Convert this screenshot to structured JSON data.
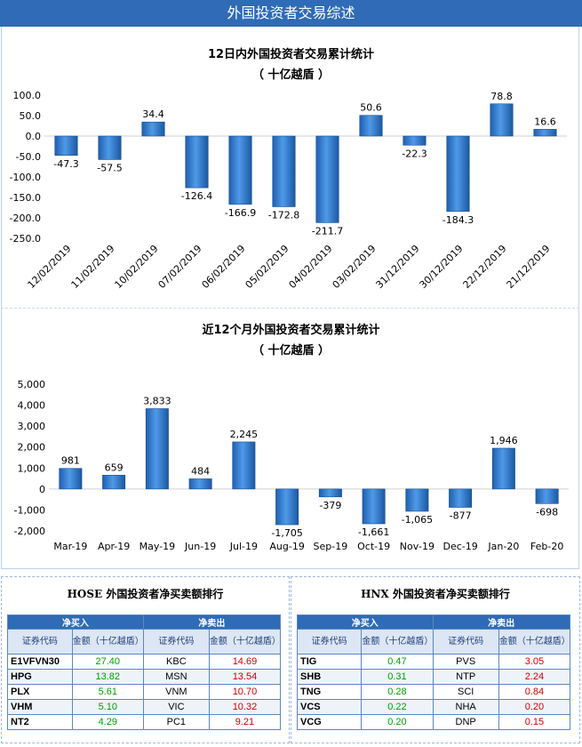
{
  "header": {
    "title": "外国投资者交易综述"
  },
  "chart_data": [
    {
      "type": "bar",
      "title": "12日内外国投资者交易累计统计",
      "subtitle": "（ 十亿越盾 ）",
      "categories": [
        "12/02/2019",
        "11/02/2019",
        "10/02/2019",
        "07/02/2019",
        "06/02/2019",
        "05/02/2019",
        "04/02/2019",
        "03/02/2019",
        "31/12/2019",
        "30/12/2019",
        "22/12/2019",
        "21/12/2019"
      ],
      "values": [
        -47.3,
        -57.5,
        34.4,
        -126.4,
        -166.9,
        -172.8,
        -211.7,
        50.6,
        -22.3,
        -184.3,
        78.8,
        16.6
      ],
      "labels": [
        "-47.3",
        "-57.5",
        "34.4",
        "-126.4",
        "-166.9",
        "-172.8",
        "-211.7",
        "50.6",
        "-22.3",
        "-184.3",
        "78.8",
        "16.6"
      ],
      "yticks": [
        "100.0",
        "50.0",
        "0.0",
        "-50.0",
        "-100.0",
        "-150.0",
        "-200.0",
        "-250.0"
      ],
      "ylim": [
        -250,
        100
      ],
      "grid": false,
      "color": "#2f86d8"
    },
    {
      "type": "bar",
      "title": "近12个月外国投资者交易累计统计",
      "subtitle": "（ 十亿越盾 ）",
      "categories": [
        "Mar-19",
        "Apr-19",
        "May-19",
        "Jun-19",
        "Jul-19",
        "Aug-19",
        "Sep-19",
        "Oct-19",
        "Nov-19",
        "Dec-19",
        "Jan-20",
        "Feb-20"
      ],
      "values": [
        981,
        659,
        3833,
        484,
        2245,
        -1705,
        -379,
        -1661,
        -1065,
        -877,
        1946,
        -698
      ],
      "labels": [
        "981",
        "659",
        "3,833",
        "484",
        "2,245",
        "-1,705",
        "-379",
        "-1,661",
        "-1,065",
        "-877",
        "1,946",
        "-698"
      ],
      "yticks": [
        "5,000",
        "4,000",
        "3,000",
        "2,000",
        "1,000",
        "0",
        "-1,000",
        "-2,000"
      ],
      "ylim": [
        -2000,
        5000
      ],
      "grid": false,
      "color": "#2f86d8"
    }
  ],
  "hose": {
    "title": "HOSE 外国投资者净买卖额排行",
    "buy_header": "净买入",
    "sell_header": "净卖出",
    "col_code": "证券代码",
    "col_amount": "金额（十亿越盾）",
    "buy": [
      {
        "code": "E1VFVN30",
        "value": "27.40"
      },
      {
        "code": "HPG",
        "value": "13.82"
      },
      {
        "code": "PLX",
        "value": "5.61"
      },
      {
        "code": "VHM",
        "value": "5.10"
      },
      {
        "code": "NT2",
        "value": "4.29"
      }
    ],
    "sell": [
      {
        "code": "KBC",
        "value": "14.69"
      },
      {
        "code": "MSN",
        "value": "13.54"
      },
      {
        "code": "VNM",
        "value": "10.70"
      },
      {
        "code": "VIC",
        "value": "10.32"
      },
      {
        "code": "PC1",
        "value": "9.21"
      }
    ]
  },
  "hnx": {
    "title": "HNX 外国投资者净买卖额排行",
    "buy_header": "净买入",
    "sell_header": "净卖出",
    "col_code": "证券代码",
    "col_amount": "金额（十亿越盾）",
    "buy": [
      {
        "code": "TIG",
        "value": "0.47"
      },
      {
        "code": "SHB",
        "value": "0.31"
      },
      {
        "code": "TNG",
        "value": "0.28"
      },
      {
        "code": "VCS",
        "value": "0.22"
      },
      {
        "code": "VCG",
        "value": "0.20"
      }
    ],
    "sell": [
      {
        "code": "PVS",
        "value": "3.05"
      },
      {
        "code": "NTP",
        "value": "2.24"
      },
      {
        "code": "SCI",
        "value": "0.84"
      },
      {
        "code": "NHA",
        "value": "0.20"
      },
      {
        "code": "DNP",
        "value": "0.15"
      }
    ]
  }
}
